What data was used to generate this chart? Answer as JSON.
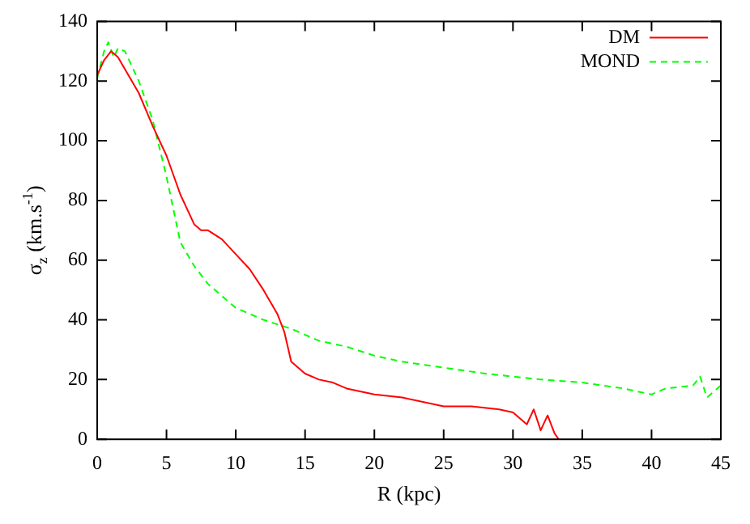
{
  "chart_data": {
    "type": "line",
    "xlabel": "R (kpc)",
    "ylabel": "σ$_{z}$ (km.s$^{-1}$)",
    "xlim": [
      0,
      45
    ],
    "ylim": [
      0,
      140
    ],
    "xticks": [
      0,
      5,
      10,
      15,
      20,
      25,
      30,
      35,
      40,
      45
    ],
    "yticks": [
      0,
      20,
      40,
      60,
      80,
      100,
      120,
      140
    ],
    "grid": false,
    "legend": "top right",
    "marker": "none",
    "series": [
      {
        "name": "DM",
        "color": "#ff0000",
        "line_style": "solid",
        "x": [
          0,
          0.5,
          1,
          1.5,
          2,
          3,
          4,
          5,
          6,
          7,
          7.5,
          8,
          9,
          10,
          11,
          12,
          13,
          13.5,
          14,
          15,
          16,
          17,
          18,
          20,
          22,
          25,
          27,
          29,
          30,
          31,
          31.5,
          32,
          32.5,
          33,
          33.3
        ],
        "values": [
          122,
          127,
          130,
          128,
          124,
          116,
          105,
          95,
          82,
          72,
          70,
          70,
          67,
          62,
          57,
          50,
          42,
          36,
          26,
          22,
          20,
          19,
          17,
          15,
          14,
          11,
          11,
          10,
          9,
          5,
          10,
          3,
          8,
          2,
          0
        ]
      },
      {
        "name": "MOND",
        "color": "#00ff00",
        "line_style": "dashed",
        "x": [
          0,
          0.5,
          0.8,
          1.2,
          1.5,
          2,
          3,
          4,
          5,
          6,
          7,
          8,
          9,
          10,
          12,
          14,
          16,
          18,
          20,
          22,
          25,
          28,
          30,
          32,
          35,
          38,
          40,
          41,
          43,
          43.5,
          44,
          45
        ],
        "values": [
          121,
          130,
          133,
          128,
          131,
          130,
          120,
          107,
          88,
          66,
          58,
          52,
          48,
          44,
          40,
          37,
          33,
          31,
          28,
          26,
          24,
          22,
          21,
          20,
          19,
          17,
          15,
          17,
          18,
          21,
          14,
          18
        ]
      }
    ]
  }
}
